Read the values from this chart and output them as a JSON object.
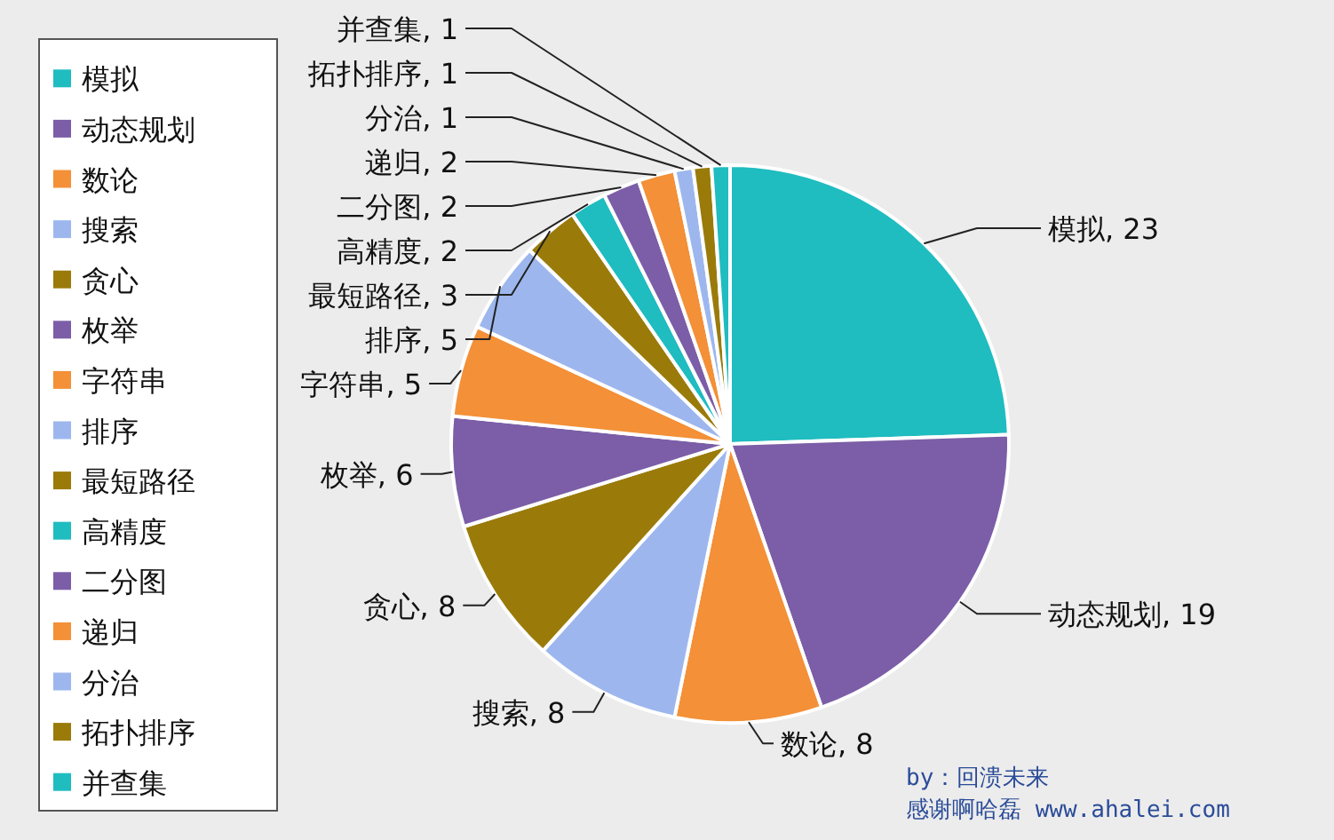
{
  "chart_data": {
    "type": "pie",
    "categories": [
      "模拟",
      "动态规划",
      "数论",
      "搜索",
      "贪心",
      "枚举",
      "字符串",
      "排序",
      "最短路径",
      "高精度",
      "二分图",
      "递归",
      "分治",
      "拓扑排序",
      "并查集"
    ],
    "values": [
      23,
      19,
      8,
      8,
      8,
      6,
      5,
      5,
      3,
      2,
      2,
      2,
      1,
      1,
      1
    ],
    "colors": [
      "#1fbcc0",
      "#7b5ea7",
      "#f39038",
      "#9db7ee",
      "#9a7b0a",
      "#7b5ea7",
      "#f39038",
      "#9db7ee",
      "#9a7b0a",
      "#1fbcc0",
      "#7b5ea7",
      "#f39038",
      "#9db7ee",
      "#9a7b0a",
      "#1fbcc0"
    ],
    "value_labels": [
      ", 23",
      ", 19",
      ", 8",
      ", 8",
      ", 8",
      ", 6",
      ", 5",
      ", 5",
      ", 3",
      ", 2",
      ", 2",
      ", 2",
      ", 1",
      ", 1",
      ", 1"
    ],
    "legend": "left",
    "annotations": [
      "by：回溃未来",
      "感谢啊哈磊 www.ahalei.com"
    ]
  }
}
